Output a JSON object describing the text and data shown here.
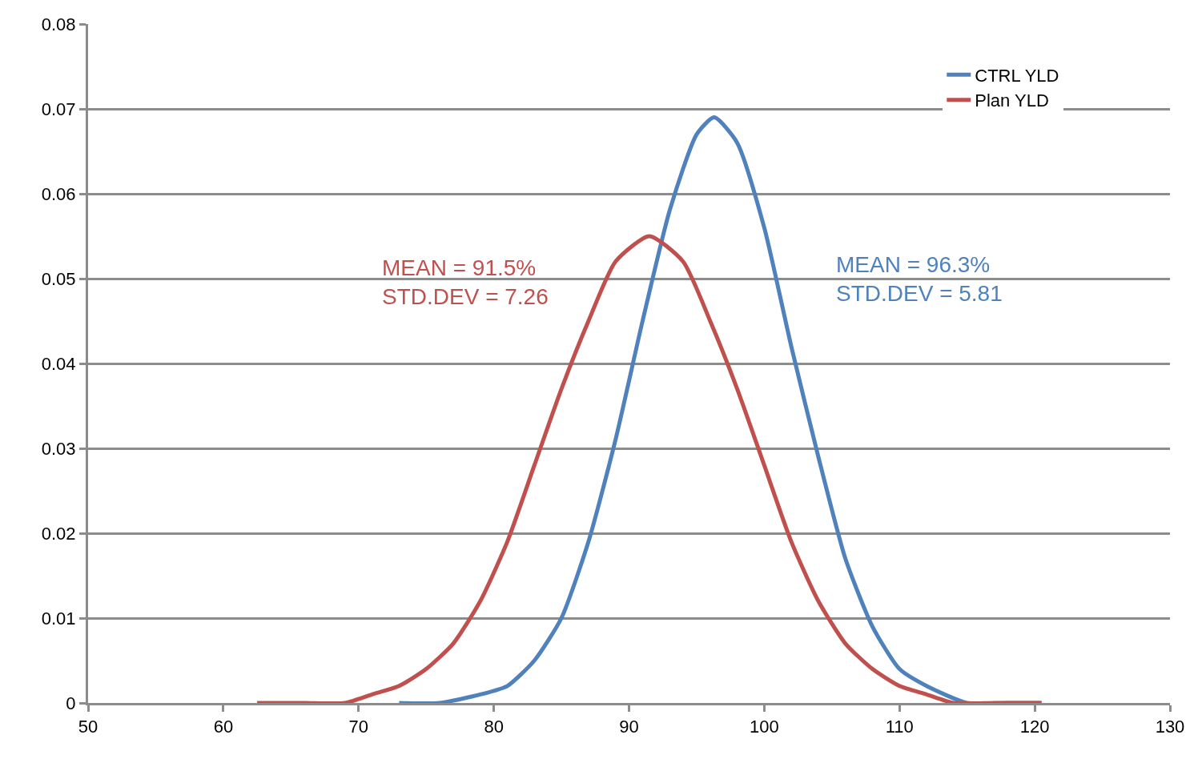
{
  "chart_data": {
    "type": "line",
    "xlim": [
      50,
      130
    ],
    "xticks": [
      50,
      60,
      70,
      80,
      90,
      100,
      110,
      120,
      130
    ],
    "ylim": [
      0,
      0.08
    ],
    "yticks": [
      0,
      0.01,
      0.02,
      0.03,
      0.04,
      0.05,
      0.06,
      0.07,
      0.08
    ],
    "grid": "y",
    "legend": "top right",
    "marker": "none",
    "line_style": "solid",
    "series": [
      {
        "name": "CTRL YLD",
        "color": "#4f81bd",
        "x": [
          73,
          76,
          79,
          81,
          83,
          85,
          87,
          89,
          91,
          93,
          95,
          96.3,
          98,
          100,
          102,
          104,
          106,
          108,
          110,
          112,
          115,
          118,
          120.5
        ],
        "values": [
          0,
          0,
          0.001,
          0.002,
          0.005,
          0.01,
          0.019,
          0.031,
          0.045,
          0.058,
          0.067,
          0.069,
          0.066,
          0.056,
          0.042,
          0.029,
          0.017,
          0.009,
          0.004,
          0.002,
          0,
          0,
          0
        ]
      },
      {
        "name": "Plan YLD",
        "color": "#c0504d",
        "x": [
          62.5,
          66,
          69,
          71,
          73,
          75,
          77,
          79,
          81,
          83,
          85,
          87,
          89,
          91.5,
          94,
          96,
          98,
          100,
          102,
          104,
          106,
          108,
          110,
          112,
          114,
          117,
          120.5
        ],
        "values": [
          0,
          0,
          0,
          0.001,
          0.002,
          0.004,
          0.007,
          0.012,
          0.019,
          0.028,
          0.037,
          0.045,
          0.052,
          0.055,
          0.052,
          0.045,
          0.037,
          0.028,
          0.019,
          0.012,
          0.007,
          0.004,
          0.002,
          0.001,
          0,
          0,
          0
        ]
      }
    ],
    "annotations": [
      "MEAN = 91.5%\nSTD.DEV = 7.26",
      "MEAN = 96.3%\nSTD.DEV = 5.81"
    ]
  }
}
